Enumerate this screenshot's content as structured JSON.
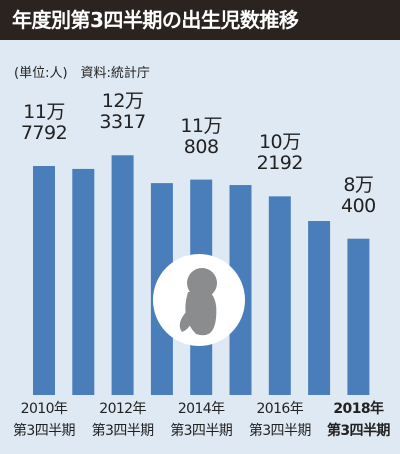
{
  "title": "年度別第3四半期の出生児数推移",
  "chart_data": {
    "type": "bar",
    "subtitle": "(単位:人)　資料:統計庁",
    "categories": [
      "2010年\n第3四半期",
      null,
      "2012年\n第3四半期",
      null,
      "2014年\n第3四半期",
      null,
      "2016年\n第3四半期",
      null,
      "2018年\n第3四半期"
    ],
    "values": [
      117792,
      116300,
      123317,
      109000,
      110808,
      108000,
      102192,
      89500,
      80400
    ],
    "value_labels": [
      "11万\n7792",
      null,
      "12万\n3317",
      null,
      "11万\n808",
      null,
      "10万\n2192",
      null,
      "8万\n400"
    ],
    "color": "#4a7ebb",
    "highlight_last": true
  }
}
